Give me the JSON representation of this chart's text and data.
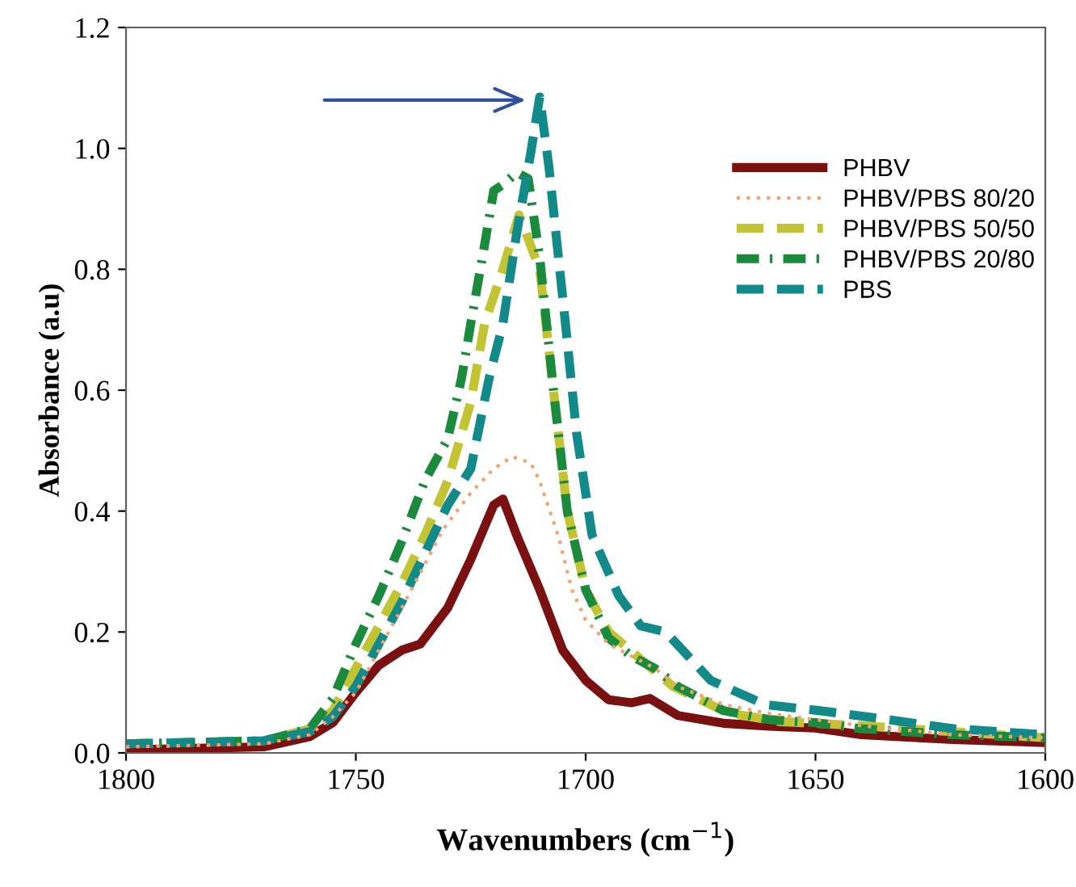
{
  "chart_data": {
    "type": "line",
    "xlabel": "Wavenumbers (cm$^{−1}$)",
    "ylabel": "Absorbance (a.u)",
    "xlim": [
      1800,
      1600
    ],
    "xticks": [
      1800,
      1750,
      1700,
      1650,
      1600
    ],
    "ylim": [
      0,
      1.2
    ],
    "yticks": [
      {
        "value": 0,
        "label": "0.0"
      },
      {
        "value": 0.2,
        "label": "0.2"
      },
      {
        "value": 0.4,
        "label": "0.4"
      },
      {
        "value": 0.6,
        "label": "0.6"
      },
      {
        "value": 0.8,
        "label": "0.8"
      },
      {
        "value": 1.0,
        "label": "1.0"
      },
      {
        "value": 1.2,
        "label": "1.2"
      }
    ],
    "grid": false,
    "legend": "right",
    "marker": "none",
    "series": [
      {
        "name": "PHBV",
        "color": "#7a1010",
        "line_style": "solid",
        "x": [
          1800,
          1770,
          1760,
          1755,
          1750,
          1745,
          1740,
          1736,
          1730,
          1725,
          1720,
          1718,
          1715,
          1710,
          1705,
          1700,
          1695,
          1690,
          1686,
          1680,
          1670,
          1660,
          1650,
          1640,
          1620,
          1600
        ],
        "values": [
          0.005,
          0.01,
          0.027,
          0.05,
          0.1,
          0.145,
          0.17,
          0.18,
          0.24,
          0.32,
          0.41,
          0.42,
          0.36,
          0.27,
          0.17,
          0.12,
          0.088,
          0.083,
          0.09,
          0.062,
          0.049,
          0.044,
          0.041,
          0.03,
          0.022,
          0.017
        ]
      },
      {
        "name": "PHBV/PBS 80/20",
        "color": "#f4a070",
        "line_style": "dotted",
        "x": [
          1800,
          1770,
          1760,
          1755,
          1750,
          1745,
          1740,
          1731,
          1725,
          1720,
          1716,
          1712,
          1710,
          1706,
          1703,
          1700,
          1695,
          1690,
          1685,
          1680,
          1670,
          1660,
          1650,
          1640,
          1620,
          1600
        ],
        "values": [
          0.01,
          0.015,
          0.03,
          0.06,
          0.1,
          0.17,
          0.24,
          0.37,
          0.43,
          0.47,
          0.49,
          0.48,
          0.45,
          0.36,
          0.27,
          0.22,
          0.18,
          0.16,
          0.14,
          0.11,
          0.08,
          0.065,
          0.055,
          0.045,
          0.03,
          0.025
        ]
      },
      {
        "name": "PHBV/PBS 50/50",
        "color": "#c2c434",
        "line_style": "dashed",
        "x": [
          1800,
          1770,
          1760,
          1755,
          1750,
          1745,
          1740,
          1735,
          1730,
          1725,
          1722,
          1718,
          1714.5,
          1712,
          1710,
          1707,
          1704,
          1700,
          1695,
          1688,
          1681,
          1669,
          1658,
          1640,
          1620,
          1600
        ],
        "values": [
          0.015,
          0.02,
          0.04,
          0.07,
          0.14,
          0.21,
          0.28,
          0.36,
          0.45,
          0.58,
          0.71,
          0.8,
          0.89,
          0.84,
          0.8,
          0.6,
          0.4,
          0.27,
          0.2,
          0.155,
          0.11,
          0.066,
          0.052,
          0.045,
          0.035,
          0.025
        ]
      },
      {
        "name": "PHBV/PBS 20/80",
        "color": "#1a8a3c",
        "line_style": "dashdot",
        "x": [
          1800,
          1770,
          1760,
          1755,
          1750,
          1745,
          1740,
          1735,
          1730,
          1727,
          1725,
          1722,
          1720,
          1718,
          1715,
          1712.5,
          1710,
          1707,
          1704,
          1700,
          1695,
          1690,
          1685,
          1680,
          1670,
          1660,
          1650,
          1640,
          1620,
          1600
        ],
        "values": [
          0.015,
          0.02,
          0.04,
          0.09,
          0.18,
          0.26,
          0.35,
          0.45,
          0.52,
          0.62,
          0.71,
          0.84,
          0.93,
          0.94,
          0.96,
          0.95,
          0.82,
          0.6,
          0.4,
          0.27,
          0.19,
          0.16,
          0.14,
          0.11,
          0.07,
          0.055,
          0.05,
          0.04,
          0.03,
          0.025
        ]
      },
      {
        "name": "PBS",
        "color": "#138a8a",
        "line_style": "dashed",
        "x": [
          1800,
          1770,
          1760,
          1755,
          1750,
          1745,
          1740,
          1735,
          1730,
          1725,
          1721,
          1718,
          1715,
          1712,
          1710,
          1708,
          1704.4,
          1702,
          1698.6,
          1692.8,
          1688,
          1682.6,
          1672.8,
          1661,
          1649.3,
          1636,
          1620,
          1600
        ],
        "values": [
          0.015,
          0.02,
          0.035,
          0.06,
          0.11,
          0.18,
          0.25,
          0.33,
          0.41,
          0.47,
          0.62,
          0.71,
          0.86,
          0.99,
          1.085,
          0.97,
          0.71,
          0.53,
          0.36,
          0.26,
          0.21,
          0.2,
          0.12,
          0.08,
          0.07,
          0.057,
          0.04,
          0.03
        ]
      }
    ]
  }
}
